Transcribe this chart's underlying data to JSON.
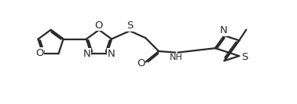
{
  "bg_color": "#ffffff",
  "line_color": "#2b2b2b",
  "line_width": 1.6,
  "font_size": 8.5,
  "figsize": [
    3.78,
    1.32
  ],
  "dpi": 100,
  "xlim": [
    0,
    10
  ],
  "ylim": [
    -1.8,
    2.2
  ]
}
